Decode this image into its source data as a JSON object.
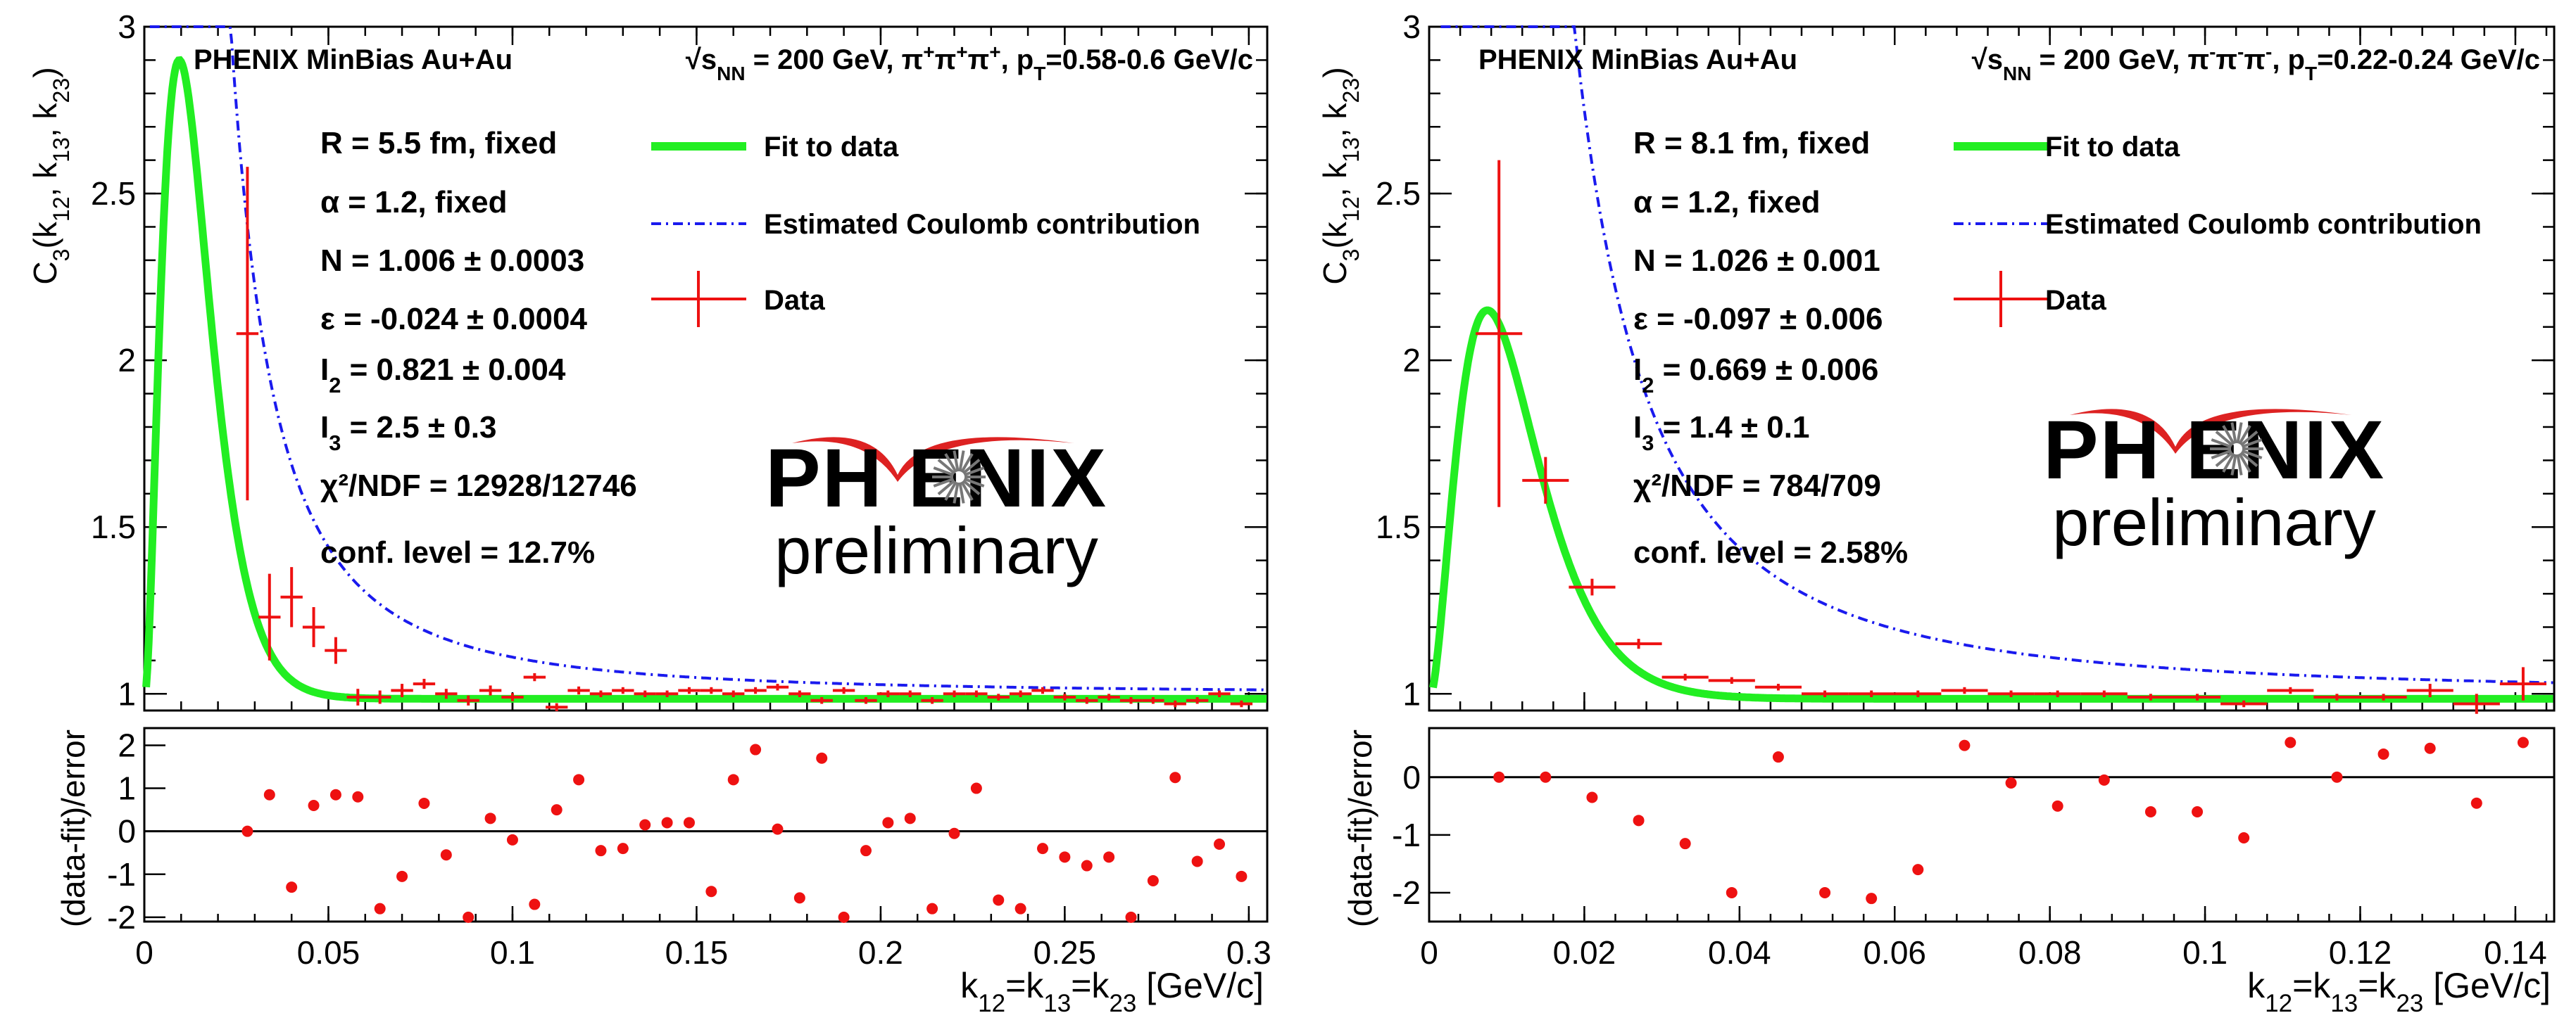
{
  "chart_data": [
    {
      "type": "scatter",
      "panel": "left",
      "header": "PHENIX MinBias Au+Au",
      "energy": "√s_NN = 200 GeV, π⁺π⁺π⁺, p_T=0.58-0.6 GeV/c",
      "ylabel": "C3(k12, k13, k23)",
      "xlabel": "k12=k13=k23 [GeV/c]",
      "residual_ylabel": "(data-fit)/error",
      "xlim": [
        0,
        0.305
      ],
      "ylim": [
        0.95,
        3.0
      ],
      "ylim_residual": [
        -2.1,
        2.4
      ],
      "x_ticks": [
        "0",
        "0.05",
        "0.1",
        "0.15",
        "0.2",
        "0.25",
        "0.3"
      ],
      "y_ticks": [
        "1",
        "1.5",
        "2",
        "2.5",
        "3"
      ],
      "y_ticks_residual": [
        "-2",
        "-1",
        "0",
        "1",
        "2"
      ],
      "params": [
        "R = 5.5 fm, fixed",
        "α = 1.2, fixed",
        "N = 1.006 ± 0.0003",
        "ε = -0.024 ± 0.0004",
        "I2 = 0.821 ± 0.004",
        "I3 = 2.5 ± 0.3",
        "χ²/NDF = 12928/12746",
        "conf. level = 12.7%"
      ],
      "fit_model": {
        "N": 1.006,
        "eps": -0.024,
        "peak_x": 0.0095,
        "peak_y": 2.9,
        "coulomb_scale": 0.0011
      },
      "data_x": [
        0.028,
        0.034,
        0.04,
        0.046,
        0.052,
        0.058,
        0.064,
        0.07,
        0.076,
        0.082,
        0.088,
        0.094,
        0.1,
        0.106,
        0.112,
        0.118,
        0.124,
        0.13,
        0.136,
        0.142,
        0.148,
        0.154,
        0.16,
        0.166,
        0.172,
        0.178,
        0.184,
        0.19,
        0.196,
        0.202,
        0.208,
        0.214,
        0.22,
        0.226,
        0.232,
        0.238,
        0.244,
        0.25,
        0.256,
        0.262,
        0.268,
        0.274,
        0.28,
        0.286,
        0.292,
        0.298
      ],
      "data_y": [
        2.08,
        1.23,
        1.29,
        1.2,
        1.13,
        0.99,
        0.99,
        1.01,
        1.03,
        1.0,
        0.98,
        1.01,
        0.99,
        1.05,
        0.96,
        1.01,
        1.0,
        1.01,
        1.0,
        1.0,
        1.01,
        1.01,
        1.0,
        1.01,
        1.02,
        1.0,
        0.98,
        1.01,
        0.98,
        1.0,
        1.0,
        0.98,
        1.0,
        1.0,
        0.99,
        1.0,
        1.01,
        0.99,
        0.98,
        0.99,
        0.98,
        0.98,
        0.97,
        0.98,
        1.0,
        0.97
      ],
      "data_err": [
        0.5,
        0.13,
        0.09,
        0.06,
        0.04,
        0.025,
        0.02,
        0.02,
        0.015,
        0.015,
        0.015,
        0.015,
        0.012,
        0.012,
        0.012,
        0.012,
        0.01,
        0.01,
        0.01,
        0.01,
        0.01,
        0.01,
        0.01,
        0.01,
        0.01,
        0.01,
        0.01,
        0.01,
        0.01,
        0.01,
        0.01,
        0.01,
        0.01,
        0.01,
        0.01,
        0.01,
        0.01,
        0.01,
        0.01,
        0.01,
        0.01,
        0.01,
        0.01,
        0.01,
        0.01,
        0.01
      ],
      "residuals": [
        0.0,
        0.85,
        -1.3,
        0.6,
        0.85,
        0.8,
        -1.8,
        -1.05,
        0.65,
        -0.55,
        -2.0,
        0.3,
        -0.2,
        -1.7,
        0.5,
        1.2,
        -0.45,
        -0.4,
        0.15,
        0.2,
        0.2,
        -1.4,
        1.2,
        1.9,
        0.05,
        -1.55,
        1.7,
        -2.0,
        -0.45,
        0.2,
        0.3,
        -1.8,
        -0.05,
        1.0,
        -1.6,
        -1.8,
        -0.4,
        -0.6,
        -0.8,
        -0.6,
        -2.0,
        -1.15,
        1.25,
        -0.7,
        -0.3,
        -1.05
      ]
    },
    {
      "type": "scatter",
      "panel": "right",
      "header": "PHENIX MinBias Au+Au",
      "energy": "√s_NN = 200 GeV, π⁻π⁻π⁻, p_T=0.22-0.24 GeV/c",
      "ylabel": "C3(k12, k13, k23)",
      "xlabel": "k12=k13=k23 [GeV/c]",
      "residual_ylabel": "(data-fit)/error",
      "xlim": [
        0,
        0.145
      ],
      "ylim": [
        0.95,
        3.0
      ],
      "ylim_residual": [
        -2.5,
        0.85
      ],
      "x_ticks": [
        "0",
        "0.02",
        "0.04",
        "0.06",
        "0.08",
        "0.1",
        "0.12",
        "0.14"
      ],
      "y_ticks": [
        "1",
        "1.5",
        "2",
        "2.5",
        "3"
      ],
      "y_ticks_residual": [
        "-2",
        "-1",
        "0"
      ],
      "params": [
        "R = 8.1 fm, fixed",
        "α = 1.2, fixed",
        "N = 1.026 ± 0.001",
        "ε = -0.097 ± 0.006",
        "I2 = 0.669 ± 0.006",
        "I3 = 1.4 ± 0.1",
        "χ²/NDF = 784/709",
        "conf. level = 2.58%"
      ],
      "fit_model": {
        "N": 1.026,
        "eps": -0.097,
        "peak_x": 0.0075,
        "peak_y": 2.15,
        "coulomb_scale": 0.0007
      },
      "data_x": [
        0.009,
        0.015,
        0.021,
        0.027,
        0.033,
        0.039,
        0.045,
        0.051,
        0.057,
        0.063,
        0.069,
        0.075,
        0.081,
        0.087,
        0.093,
        0.099,
        0.105,
        0.111,
        0.117,
        0.123,
        0.129,
        0.135,
        0.141
      ],
      "data_y": [
        2.08,
        1.64,
        1.32,
        1.15,
        1.05,
        1.04,
        1.02,
        1.0,
        1.0,
        1.0,
        1.01,
        1.0,
        1.0,
        1.0,
        0.99,
        0.99,
        0.97,
        1.01,
        0.99,
        0.99,
        1.01,
        0.97,
        1.03
      ],
      "data_err": [
        0.52,
        0.07,
        0.025,
        0.015,
        0.01,
        0.01,
        0.01,
        0.01,
        0.01,
        0.01,
        0.01,
        0.01,
        0.01,
        0.01,
        0.01,
        0.01,
        0.01,
        0.01,
        0.01,
        0.01,
        0.02,
        0.03,
        0.05
      ],
      "residuals": [
        0.0,
        0.0,
        -0.35,
        -0.75,
        -1.15,
        -2.0,
        0.35,
        -2.0,
        -2.1,
        -1.6,
        0.55,
        -0.1,
        -0.5,
        -0.05,
        -0.6,
        -0.6,
        -1.05,
        0.6,
        0.0,
        0.4,
        0.5,
        -0.45,
        0.6
      ]
    }
  ],
  "legend": {
    "fit": "Fit to data",
    "coulomb": "Estimated Coulomb contribution",
    "data": "Data"
  },
  "logo": {
    "name": "PH ENIX",
    "subtitle": "preliminary"
  },
  "colors": {
    "fit": "#22ee22",
    "coulomb": "#1a1aee",
    "data": "#ee1111",
    "logo_arc": "#dd2222"
  }
}
